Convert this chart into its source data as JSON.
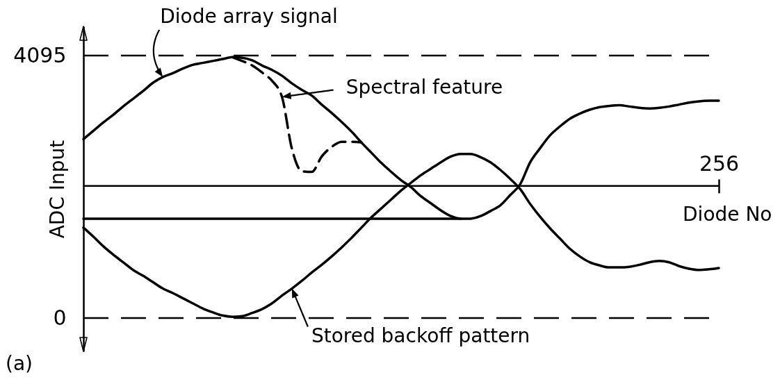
{
  "chart_data": {
    "type": "line",
    "xlabel": "Diode No",
    "ylabel": "ADC Input",
    "categories": [
      null,
      null,
      null,
      null,
      null,
      null,
      null,
      null,
      null,
      null,
      null,
      null,
      null,
      null,
      null,
      null,
      null,
      null,
      null,
      null,
      null,
      null,
      null,
      null,
      null,
      null,
      null,
      null,
      null,
      null,
      null,
      null,
      null,
      null,
      null,
      null,
      null,
      null,
      null,
      null,
      null,
      null,
      null,
      null,
      null,
      null,
      null,
      null,
      null,
      null,
      null,
      null,
      null,
      null,
      null,
      null,
      null,
      null,
      null,
      null,
      null,
      null,
      null,
      null,
      "256"
    ],
    "ylim": [
      -520,
      4550
    ],
    "yticks": [
      0,
      4095
    ],
    "series": [
      {
        "name": "Diode array signal",
        "color": "#000000",
        "values": [
          2790,
          2920,
          3050,
          3170,
          3300,
          3420,
          3540,
          3670,
          3760,
          3820,
          3890,
          3950,
          3980,
          4010,
          4040,
          4070,
          4060,
          4020,
          3940,
          3870,
          3780,
          3660,
          3560,
          3470,
          3330,
          3200,
          3060,
          2910,
          2740,
          2580,
          2420,
          2280,
          2150,
          2040,
          1900,
          1790,
          1680,
          1590,
          1550,
          1550,
          1590,
          1670,
          1760,
          1920,
          2090,
          2430,
          2650,
          2850,
          2990,
          3110,
          3190,
          3250,
          3290,
          3310,
          3320,
          3300,
          3280,
          3270,
          3280,
          3300,
          3330,
          3360,
          3380,
          3390,
          3390
        ]
      },
      {
        "name": "Spectral feature",
        "color": "#000000",
        "line_style": "dashed",
        "values": [
          null,
          null,
          null,
          null,
          null,
          null,
          null,
          null,
          null,
          null,
          null,
          null,
          null,
          null,
          null,
          4070,
          4010,
          3940,
          3830,
          3700,
          3450,
          2640,
          2290,
          2280,
          2520,
          2670,
          2750,
          2750,
          2740,
          null,
          null,
          null,
          null,
          null,
          null,
          null,
          null,
          null,
          null,
          null,
          null,
          null,
          null,
          null,
          null,
          null,
          null,
          null,
          null,
          null,
          null,
          null,
          null,
          null,
          null,
          null,
          null,
          null,
          null,
          null,
          null,
          null,
          null,
          null,
          null
        ]
      },
      {
        "name": "Stored backoff pattern",
        "color": "#000000",
        "values": [
          1410,
          1270,
          1120,
          990,
          870,
          750,
          660,
          560,
          460,
          390,
          310,
          230,
          150,
          90,
          40,
          20,
          30,
          80,
          140,
          230,
          350,
          460,
          580,
          710,
          830,
          960,
          1100,
          1250,
          1410,
          1570,
          1710,
          1850,
          1990,
          2110,
          2230,
          2330,
          2430,
          2520,
          2560,
          2560,
          2510,
          2430,
          2310,
          2170,
          2010,
          1780,
          1580,
          1400,
          1240,
          1080,
          960,
          870,
          820,
          790,
          790,
          800,
          830,
          870,
          890,
          870,
          810,
          770,
          750,
          760,
          780
        ]
      },
      {
        "color": "#000000",
        "values": [
          1550,
          1550,
          1550,
          1550,
          1550,
          1550,
          1550,
          1550,
          1550,
          1550,
          1550,
          1550,
          1550,
          1550,
          1550,
          1550,
          1550,
          1550,
          1550,
          1550,
          1550,
          1550,
          1550,
          1550,
          1550,
          1550,
          1550,
          1550,
          1550,
          1550,
          1550,
          1550,
          1550,
          1550,
          1550,
          1550,
          1550,
          1550,
          1550,
          null,
          null,
          null,
          null,
          null,
          null,
          null,
          null,
          null,
          null,
          null,
          null,
          null,
          null,
          null,
          null,
          null,
          null,
          null,
          null,
          null,
          null,
          null,
          null,
          null,
          null
        ]
      }
    ],
    "ref_lines": [
      {
        "axis": "y",
        "value": 4095,
        "line_style": "dashed",
        "color": "#000000"
      },
      {
        "axis": "y",
        "value": 0,
        "line_style": "dashed",
        "color": "#000000"
      },
      {
        "axis": "y",
        "value": 2060,
        "line_style": "solid",
        "color": "#000000"
      }
    ],
    "annotations": [
      "(a)"
    ]
  }
}
